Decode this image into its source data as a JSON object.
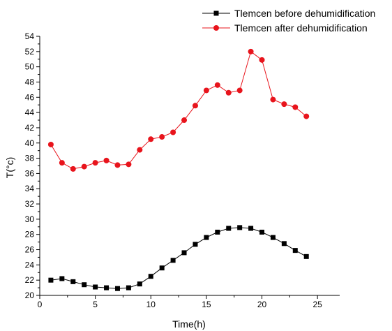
{
  "chart_data": {
    "type": "line",
    "title": "",
    "xlabel": "Time(h)",
    "ylabel": "T(°c)",
    "xlim": [
      0,
      27
    ],
    "ylim": [
      20,
      54
    ],
    "xticks": [
      0,
      5,
      10,
      15,
      20,
      25
    ],
    "yticks": [
      20,
      22,
      24,
      26,
      28,
      30,
      32,
      34,
      36,
      38,
      40,
      42,
      44,
      46,
      48,
      50,
      52,
      54
    ],
    "grid": false,
    "legend_position": "top-right",
    "x": [
      1,
      2,
      3,
      4,
      5,
      6,
      7,
      8,
      9,
      10,
      11,
      12,
      13,
      14,
      15,
      16,
      17,
      18,
      19,
      20,
      21,
      22,
      23,
      24
    ],
    "series": [
      {
        "name": "Tlemcen before dehumidification",
        "color": "#000000",
        "marker": "square",
        "values": [
          22.0,
          22.2,
          21.8,
          21.4,
          21.1,
          21.0,
          20.9,
          21.0,
          21.5,
          22.5,
          23.6,
          24.6,
          25.6,
          26.7,
          27.6,
          28.3,
          28.8,
          28.9,
          28.8,
          28.3,
          27.6,
          26.8,
          25.9,
          25.1
        ]
      },
      {
        "name": "Tlemcen after dehumidification",
        "color": "#e8141c",
        "marker": "circle",
        "values": [
          39.8,
          37.4,
          36.6,
          36.9,
          37.4,
          37.7,
          37.1,
          37.2,
          39.1,
          40.5,
          40.8,
          41.4,
          43.0,
          44.9,
          46.9,
          47.6,
          46.6,
          46.9,
          52.0,
          50.9,
          45.7,
          45.1,
          44.7,
          43.5
        ]
      }
    ]
  }
}
